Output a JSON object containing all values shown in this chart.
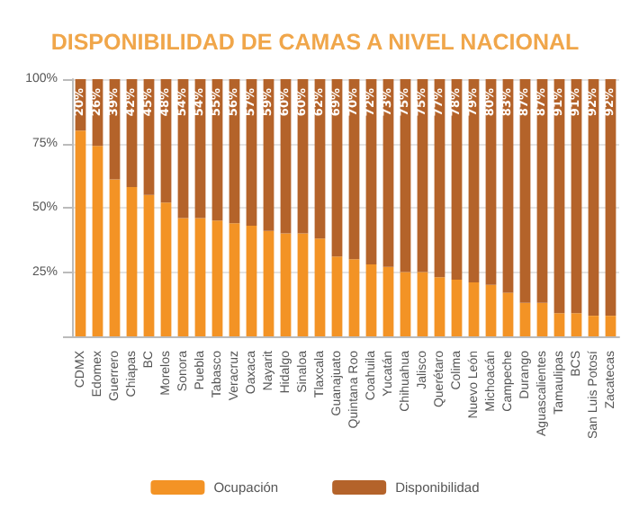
{
  "chart_data": {
    "type": "bar",
    "title": "DISPONIBILIDAD DE CAMAS A NIVEL NACIONAL",
    "stacked": true,
    "categories": [
      "CDMX",
      "Edomex",
      "Guerrero",
      "Chiapas",
      "BC",
      "Morelos",
      "Sonora",
      "Puebla",
      "Tabasco",
      "Veracruz",
      "Oaxaca",
      "Nayarit",
      "Hidalgo",
      "Sinaloa",
      "Tlaxcala",
      "Guanajuato",
      "Quintana Roo",
      "Coahuila",
      "Yucatán",
      "Chihuahua",
      "Jalisco",
      "Querétaro",
      "Colima",
      "Nuevo León",
      "Michoacán",
      "Campeche",
      "Durango",
      "Aguascalientes",
      "Tamaulipas",
      "BCS",
      "San Luis Potosí",
      "Zacatecas"
    ],
    "series": [
      {
        "name": "Ocupación",
        "color": "#f39325",
        "values": [
          80,
          74,
          61,
          58,
          55,
          52,
          46,
          46,
          45,
          44,
          43,
          41,
          40,
          40,
          38,
          31,
          30,
          28,
          27,
          25,
          25,
          23,
          22,
          21,
          20,
          17,
          13,
          13,
          9,
          9,
          8,
          8
        ]
      },
      {
        "name": "Disponibilidad",
        "color": "#b4632a",
        "values": [
          20,
          26,
          39,
          42,
          45,
          48,
          54,
          54,
          55,
          56,
          57,
          59,
          60,
          60,
          62,
          69,
          70,
          72,
          73,
          75,
          75,
          77,
          78,
          79,
          80,
          83,
          87,
          87,
          91,
          91,
          92,
          92
        ],
        "value_labels": [
          "20%",
          "26%",
          "39%",
          "42%",
          "45%",
          "48%",
          "54%",
          "54%",
          "55%",
          "56%",
          "57%",
          "59%",
          "60%",
          "60%",
          "62%",
          "69%",
          "70%",
          "72%",
          "73%",
          "75%",
          "75%",
          "77%",
          "78%",
          "79%",
          "80%",
          "83%",
          "87%",
          "87%",
          "91%",
          "91%",
          "92%",
          "92%"
        ]
      }
    ],
    "ylim": [
      0,
      100
    ],
    "yticks": [
      {
        "value": 0,
        "label": null
      },
      {
        "value": 25,
        "label": "25%"
      },
      {
        "value": 50,
        "label": "50%"
      },
      {
        "value": 75,
        "label": "75%"
      },
      {
        "value": 100,
        "label": "100%"
      }
    ],
    "grid": "y",
    "legend": "bottom"
  }
}
